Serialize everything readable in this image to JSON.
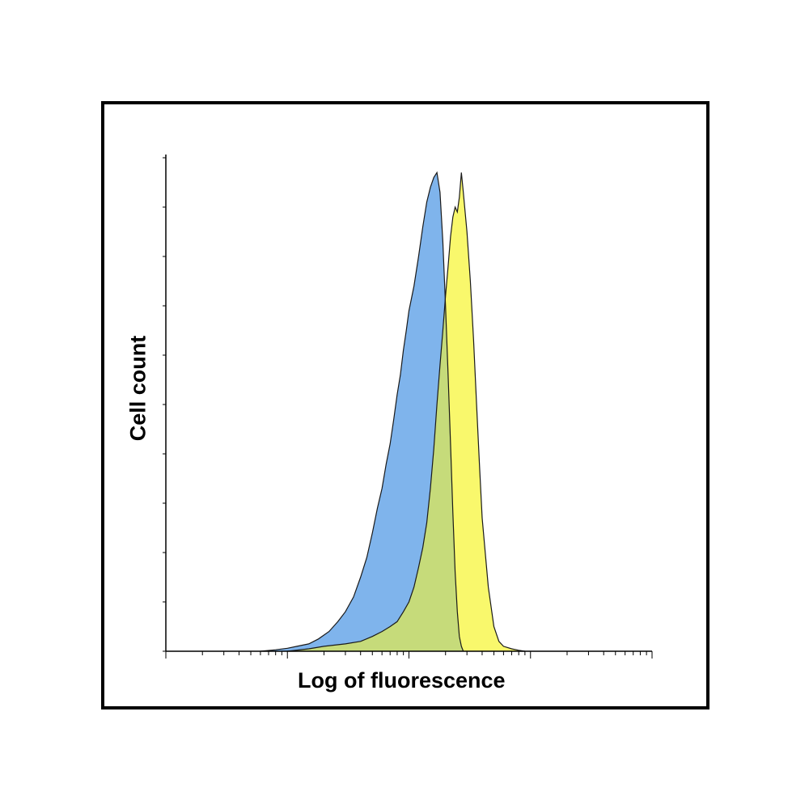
{
  "chart_data": {
    "type": "area",
    "title": "",
    "xlabel": "Log of fluorescence",
    "ylabel": "Cell count",
    "x_scale": "log",
    "xlim": [
      1,
      10000
    ],
    "ylim": [
      0,
      100
    ],
    "grid": false,
    "legend": "none",
    "series": [
      {
        "color": "#7fb4ec",
        "x": [
          6,
          8,
          10,
          12,
          15,
          18,
          22,
          26,
          30,
          35,
          40,
          45,
          50,
          55,
          60,
          65,
          70,
          75,
          80,
          85,
          90,
          95,
          100,
          110,
          120,
          130,
          140,
          150,
          160,
          170,
          180,
          190,
          200,
          210,
          220,
          230,
          240,
          250,
          260,
          270,
          280
        ],
        "y": [
          0,
          0.3,
          0.6,
          1,
          1.5,
          2.5,
          4,
          6,
          8,
          11,
          15,
          19,
          24,
          29,
          33,
          38,
          42,
          47,
          52,
          56,
          61,
          65,
          69,
          74,
          80,
          86,
          91,
          94,
          96,
          97,
          93,
          83,
          70,
          56,
          42,
          28,
          16,
          8,
          3,
          1,
          0
        ]
      },
      {
        "color": "#f9f86c",
        "x": [
          10,
          15,
          20,
          30,
          40,
          50,
          60,
          70,
          80,
          90,
          100,
          110,
          120,
          130,
          140,
          150,
          160,
          170,
          180,
          190,
          200,
          210,
          220,
          230,
          240,
          250,
          260,
          270,
          280,
          300,
          320,
          340,
          360,
          380,
          400,
          450,
          500,
          550,
          600,
          700,
          800,
          900
        ],
        "y": [
          0,
          0.5,
          1,
          1.5,
          2,
          3,
          4,
          5,
          6,
          8,
          10,
          13,
          17,
          21,
          26,
          33,
          41,
          50,
          58,
          65,
          72,
          78,
          84,
          88,
          90,
          89,
          92,
          97,
          93,
          85,
          75,
          63,
          50,
          38,
          27,
          13,
          5,
          2,
          1,
          0.5,
          0.2,
          0
        ]
      }
    ]
  }
}
